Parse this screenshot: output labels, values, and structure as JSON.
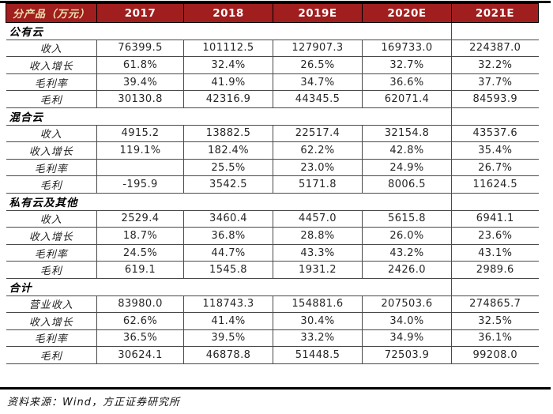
{
  "colors": {
    "header_bg": "#A01E1E",
    "header_label_color": "#F0E2B0",
    "header_year_color": "#FFFFFF",
    "grid_color": "#4A4A4A",
    "rule_color": "#000000",
    "text_color": "#262626"
  },
  "chart_data": {
    "type": "table",
    "columns": [
      "分产品（万元）",
      "2017",
      "2018",
      "2019E",
      "2020E",
      "2021E"
    ],
    "sections": [
      {
        "title": "公有云",
        "rows": [
          {
            "label": "收入",
            "values": [
              "76399.5",
              "101112.5",
              "127907.3",
              "169733.0",
              "224387.0"
            ]
          },
          {
            "label": "收入增长",
            "values": [
              "61.8%",
              "32.4%",
              "26.5%",
              "32.7%",
              "32.2%"
            ]
          },
          {
            "label": "毛利率",
            "values": [
              "39.4%",
              "41.9%",
              "34.7%",
              "36.6%",
              "37.7%"
            ]
          },
          {
            "label": "毛利",
            "values": [
              "30130.8",
              "42316.9",
              "44345.5",
              "62071.4",
              "84593.9"
            ]
          }
        ]
      },
      {
        "title": "混合云",
        "rows": [
          {
            "label": "收入",
            "values": [
              "4915.2",
              "13882.5",
              "22517.4",
              "32154.8",
              "43537.6"
            ]
          },
          {
            "label": "收入增长",
            "values": [
              "119.1%",
              "182.4%",
              "62.2%",
              "42.8%",
              "35.4%"
            ]
          },
          {
            "label": "毛利率",
            "values": [
              "",
              "25.5%",
              "23.0%",
              "24.9%",
              "26.7%"
            ]
          },
          {
            "label": "毛利",
            "values": [
              "-195.9",
              "3542.5",
              "5171.8",
              "8006.5",
              "11624.5"
            ]
          }
        ]
      },
      {
        "title": "私有云及其他",
        "rows": [
          {
            "label": "收入",
            "values": [
              "2529.4",
              "3460.4",
              "4457.0",
              "5615.8",
              "6941.1"
            ]
          },
          {
            "label": "收入增长",
            "values": [
              "18.7%",
              "36.8%",
              "28.8%",
              "26.0%",
              "23.6%"
            ]
          },
          {
            "label": "毛利率",
            "values": [
              "24.5%",
              "44.7%",
              "43.3%",
              "43.2%",
              "43.1%"
            ]
          },
          {
            "label": "毛利",
            "values": [
              "619.1",
              "1545.8",
              "1931.2",
              "2426.0",
              "2989.6"
            ]
          }
        ]
      },
      {
        "title": "合计",
        "rows": [
          {
            "label": "营业收入",
            "values": [
              "83980.0",
              "118743.3",
              "154881.6",
              "207503.6",
              "274865.7"
            ]
          },
          {
            "label": "收入增长",
            "values": [
              "62.6%",
              "41.4%",
              "30.4%",
              "34.0%",
              "32.5%"
            ]
          },
          {
            "label": "毛利率",
            "values": [
              "36.5%",
              "39.5%",
              "33.2%",
              "34.9%",
              "36.1%"
            ]
          },
          {
            "label": "毛利",
            "values": [
              "30624.1",
              "46878.8",
              "51448.5",
              "72503.9",
              "99208.0"
            ]
          }
        ]
      }
    ],
    "source": "资料来源：Wind，方正证券研究所"
  }
}
